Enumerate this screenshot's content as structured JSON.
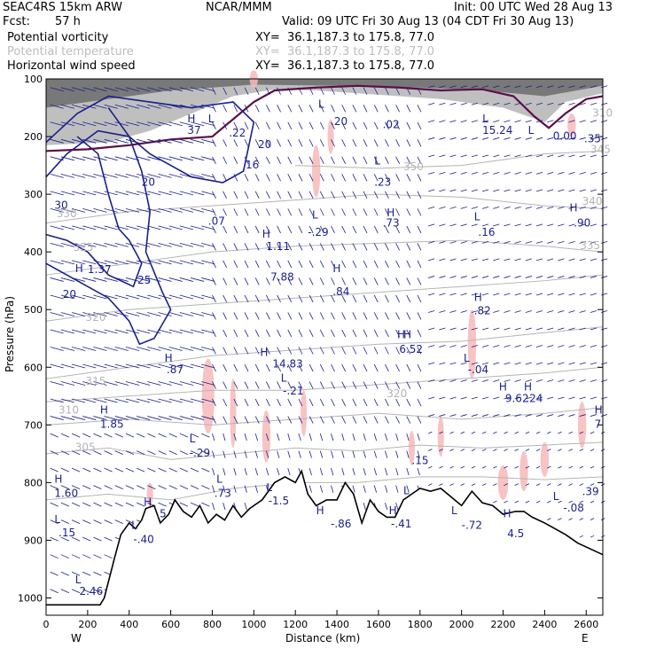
{
  "header": {
    "model": "SEAC4RS 15km ARW",
    "org": "NCAR/MMM",
    "init": "Init: 00 UTC Wed 28 Aug 13",
    "fcst_label": "Fcst:",
    "fcst_value": "57 h",
    "valid": "Valid: 09 UTC Fri 30 Aug 13 (04 CDT Fri 30 Aug 13)"
  },
  "fields": [
    {
      "name": "Potential vorticity",
      "xy": "XY=  36.1,187.3 to 175.8, 77.0",
      "color": "#000000"
    },
    {
      "name": "Potential temperature",
      "xy": "XY=  36.1,187.3 to 175.8, 77.0",
      "color": "#bdbdbd"
    },
    {
      "name": "Horizontal wind speed",
      "xy": "XY=  36.1,187.3 to 175.8, 77.0",
      "color": "#000000"
    }
  ],
  "chart_data": {
    "type": "cross-section",
    "xlabel": "Distance (km)",
    "ylabel": "Pressure (hPa)",
    "xlim": [
      0,
      2680
    ],
    "ylim": [
      1030,
      100
    ],
    "x_ticks": [
      0,
      200,
      400,
      600,
      800,
      1000,
      1200,
      1400,
      1600,
      1800,
      2000,
      2200,
      2400,
      2600
    ],
    "y_ticks": [
      100,
      200,
      300,
      400,
      500,
      600,
      700,
      800,
      900,
      1000
    ],
    "x_end_labels": {
      "left": "W",
      "right": "E"
    },
    "colors": {
      "pv_contour": "#1a1f8c",
      "theta_contour": "#b4b4b4",
      "terrain": "#000000",
      "tropopause": "#5a0f4a",
      "wind_vector": "#1a1f8c",
      "shading_pink": "#f7b8b8",
      "mark_text": "#1a1f8c"
    },
    "theta_labels": [
      {
        "x": 190,
        "p": 520,
        "text": "320"
      },
      {
        "x": 190,
        "p": 630,
        "text": "315"
      },
      {
        "x": 60,
        "p": 680,
        "text": "310"
      },
      {
        "x": 140,
        "p": 745,
        "text": "305"
      },
      {
        "x": 1720,
        "p": 258,
        "text": "350"
      },
      {
        "x": 2620,
        "p": 228,
        "text": "345"
      },
      {
        "x": 2580,
        "p": 318,
        "text": "340"
      },
      {
        "x": 2570,
        "p": 395,
        "text": "335"
      },
      {
        "x": 2630,
        "p": 165,
        "text": "310"
      },
      {
        "x": 1640,
        "p": 652,
        "text": "320"
      },
      {
        "x": 50,
        "p": 340,
        "text": "330"
      },
      {
        "x": 130,
        "p": 398,
        "text": "325"
      }
    ],
    "pv_labels": [
      {
        "x": 40,
        "p": 325,
        "text": "30"
      },
      {
        "x": 460,
        "p": 285,
        "text": "20"
      },
      {
        "x": 440,
        "p": 455,
        "text": "25"
      },
      {
        "x": 80,
        "p": 480,
        "text": "20"
      },
      {
        "x": 780,
        "p": 353,
        "text": ".07"
      },
      {
        "x": 1020,
        "p": 220,
        "text": "20"
      },
      {
        "x": 960,
        "p": 255,
        "text": "16"
      }
    ],
    "extrema": [
      {
        "type": "H",
        "x": 680,
        "p": 175
      },
      {
        "type": "L",
        "x": 780,
        "p": 175
      },
      {
        "type": "L",
        "x": 1310,
        "p": 150
      },
      {
        "type": "L",
        "x": 1580,
        "p": 248
      },
      {
        "type": "L",
        "x": 2100,
        "p": 175
      },
      {
        "type": "L",
        "x": 2320,
        "p": 195
      },
      {
        "type": "H",
        "x": 1640,
        "p": 338
      },
      {
        "type": "L",
        "x": 1280,
        "p": 342
      },
      {
        "type": "H",
        "x": 1040,
        "p": 375
      },
      {
        "type": "H",
        "x": 1380,
        "p": 435
      },
      {
        "type": "L",
        "x": 2060,
        "p": 345
      },
      {
        "type": "H",
        "x": 2520,
        "p": 330
      },
      {
        "type": "H",
        "x": 2060,
        "p": 485
      },
      {
        "type": "H",
        "x": 1690,
        "p": 550
      },
      {
        "type": "H",
        "x": 1720,
        "p": 550
      },
      {
        "type": "H",
        "x": 570,
        "p": 590
      },
      {
        "type": "H",
        "x": 1030,
        "p": 580
      },
      {
        "type": "L",
        "x": 1130,
        "p": 625
      },
      {
        "type": "L",
        "x": 2010,
        "p": 590
      },
      {
        "type": "H",
        "x": 2180,
        "p": 640
      },
      {
        "type": "H",
        "x": 2300,
        "p": 640
      },
      {
        "type": "H",
        "x": 260,
        "p": 680
      },
      {
        "type": "L",
        "x": 690,
        "p": 730
      },
      {
        "type": "H",
        "x": 2640,
        "p": 680
      },
      {
        "type": "L",
        "x": 820,
        "p": 800
      },
      {
        "type": "L",
        "x": 1060,
        "p": 815
      },
      {
        "type": "L",
        "x": 1720,
        "p": 820
      },
      {
        "type": "L",
        "x": 1950,
        "p": 855
      },
      {
        "type": "H",
        "x": 2200,
        "p": 860
      },
      {
        "type": "L",
        "x": 2440,
        "p": 830
      },
      {
        "type": "H",
        "x": 1300,
        "p": 855
      },
      {
        "type": "H",
        "x": 1650,
        "p": 855
      },
      {
        "type": "H",
        "x": 40,
        "p": 800
      },
      {
        "type": "L",
        "x": 40,
        "p": 870
      },
      {
        "type": "L",
        "x": 410,
        "p": 880
      },
      {
        "type": "H",
        "x": 470,
        "p": 840
      },
      {
        "type": "L",
        "x": 140,
        "p": 975
      },
      {
        "type": "H",
        "x": 140,
        "p": 435
      }
    ],
    "value_labels": [
      {
        "x": 880,
        "p": 200,
        "text": ".22"
      },
      {
        "x": 1370,
        "p": 180,
        "text": ".20"
      },
      {
        "x": 1620,
        "p": 185,
        "text": ".02"
      },
      {
        "x": 2100,
        "p": 195,
        "text": "15.24"
      },
      {
        "x": 2440,
        "p": 205,
        "text": "0.00"
      },
      {
        "x": 2590,
        "p": 210,
        "text": ".35"
      },
      {
        "x": 1580,
        "p": 285,
        "text": ".23"
      },
      {
        "x": 1260,
        "p": 372,
        "text": "-.29"
      },
      {
        "x": 1620,
        "p": 356,
        "text": ".73"
      },
      {
        "x": 2080,
        "p": 372,
        "text": ".16"
      },
      {
        "x": 2540,
        "p": 356,
        "text": ".90"
      },
      {
        "x": 1060,
        "p": 397,
        "text": "1.11"
      },
      {
        "x": 1080,
        "p": 450,
        "text": "7.88"
      },
      {
        "x": 1380,
        "p": 475,
        "text": ".84"
      },
      {
        "x": 2060,
        "p": 508,
        "text": ".82"
      },
      {
        "x": 1700,
        "p": 575,
        "text": "6.52"
      },
      {
        "x": 580,
        "p": 610,
        "text": ".87"
      },
      {
        "x": 1090,
        "p": 600,
        "text": "14.83"
      },
      {
        "x": 1140,
        "p": 647,
        "text": "-.21"
      },
      {
        "x": 2030,
        "p": 610,
        "text": "-.04"
      },
      {
        "x": 2210,
        "p": 660,
        "text": "9.62"
      },
      {
        "x": 2310,
        "p": 660,
        "text": ".24"
      },
      {
        "x": 260,
        "p": 705,
        "text": "1.85"
      },
      {
        "x": 690,
        "p": 755,
        "text": "-.29"
      },
      {
        "x": 2640,
        "p": 705,
        "text": "7"
      },
      {
        "x": 810,
        "p": 825,
        "text": ".73"
      },
      {
        "x": 1070,
        "p": 838,
        "text": "-1.5"
      },
      {
        "x": 1760,
        "p": 768,
        "text": ".15"
      },
      {
        "x": 2580,
        "p": 822,
        "text": ".39"
      },
      {
        "x": 2490,
        "p": 850,
        "text": "-.08"
      },
      {
        "x": 40,
        "p": 825,
        "text": "1.60"
      },
      {
        "x": 60,
        "p": 893,
        "text": ".15"
      },
      {
        "x": 1370,
        "p": 878,
        "text": "-.86"
      },
      {
        "x": 1660,
        "p": 878,
        "text": "-.41"
      },
      {
        "x": 2000,
        "p": 880,
        "text": "-.72"
      },
      {
        "x": 2220,
        "p": 895,
        "text": "4.5"
      },
      {
        "x": 420,
        "p": 905,
        "text": "-.40"
      },
      {
        "x": 530,
        "p": 860,
        "text": ".5"
      },
      {
        "x": 160,
        "p": 995,
        "text": "2.46"
      },
      {
        "x": 200,
        "p": 437,
        "text": "1.37"
      },
      {
        "x": 680,
        "p": 195,
        "text": "37"
      }
    ]
  }
}
